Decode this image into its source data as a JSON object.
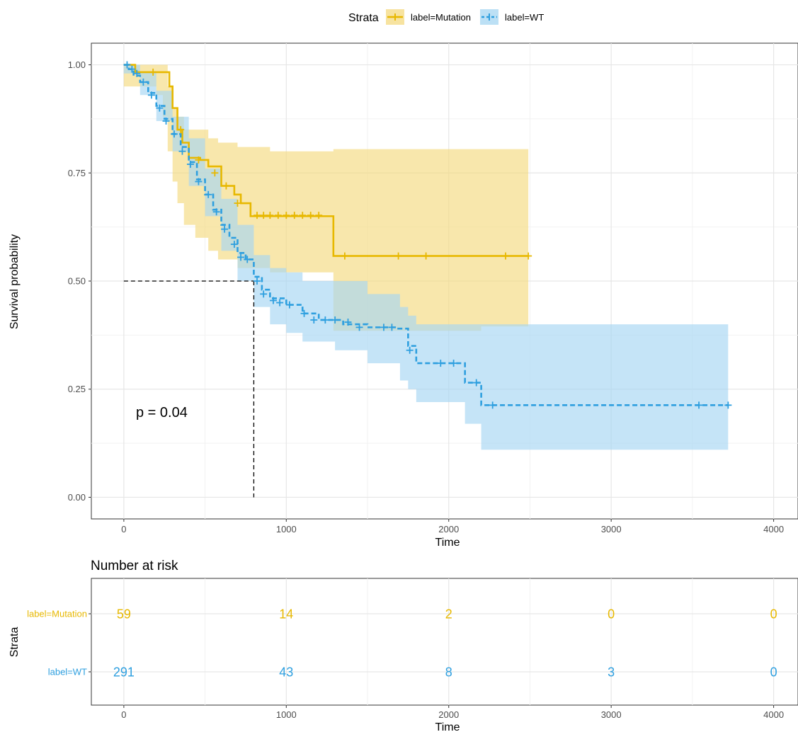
{
  "legend": {
    "title": "Strata",
    "items": [
      "label=Mutation",
      "label=WT"
    ]
  },
  "colors": {
    "mutation": "#E7B800",
    "wt": "#2E9FDF"
  },
  "annotation": {
    "pvalue": "p = 0.04"
  },
  "risk_table": {
    "title": "Number at risk",
    "ylabel": "Strata",
    "xlabel": "Time",
    "times": [
      0,
      1000,
      2000,
      3000,
      4000
    ],
    "rows": [
      {
        "label": "label=Mutation",
        "counts": [
          "59",
          "14",
          "2",
          "0",
          "0"
        ]
      },
      {
        "label": "label=WT",
        "counts": [
          "291",
          "43",
          "8",
          "3",
          "0"
        ]
      }
    ]
  },
  "chart_data": {
    "type": "line",
    "xlabel": "Time",
    "ylabel": "Survival probability",
    "xlim": [
      -200,
      4150
    ],
    "ylim": [
      -0.05,
      1.05
    ],
    "xticks": [
      "0",
      "1000",
      "2000",
      "3000",
      "4000"
    ],
    "yticks": [
      "0.00",
      "0.25",
      "0.50",
      "0.75",
      "1.00"
    ],
    "grid": true,
    "legend_position": "top",
    "median_line": {
      "x": 800,
      "y": 0.5
    },
    "series": [
      {
        "name": "label=Mutation",
        "style": "solid",
        "steps": [
          [
            0,
            1.0
          ],
          [
            70,
            0.983
          ],
          [
            280,
            0.95
          ],
          [
            300,
            0.9
          ],
          [
            330,
            0.85
          ],
          [
            360,
            0.82
          ],
          [
            400,
            0.785
          ],
          [
            470,
            0.78
          ],
          [
            520,
            0.765
          ],
          [
            600,
            0.72
          ],
          [
            680,
            0.7
          ],
          [
            720,
            0.68
          ],
          [
            780,
            0.65
          ],
          [
            1290,
            0.558
          ],
          [
            2490,
            0.558
          ]
        ],
        "censors": [
          [
            180,
            0.983
          ],
          [
            350,
            0.85
          ],
          [
            460,
            0.78
          ],
          [
            560,
            0.75
          ],
          [
            630,
            0.72
          ],
          [
            700,
            0.68
          ],
          [
            820,
            0.652
          ],
          [
            860,
            0.652
          ],
          [
            900,
            0.652
          ],
          [
            950,
            0.652
          ],
          [
            1000,
            0.652
          ],
          [
            1050,
            0.652
          ],
          [
            1100,
            0.652
          ],
          [
            1150,
            0.652
          ],
          [
            1200,
            0.652
          ],
          [
            1360,
            0.558
          ],
          [
            1690,
            0.558
          ],
          [
            1860,
            0.558
          ],
          [
            2350,
            0.558
          ],
          [
            2490,
            0.558
          ]
        ],
        "ci": [
          [
            0,
            0.95,
            1.0
          ],
          [
            200,
            0.93,
            1.0
          ],
          [
            240,
            0.88,
            1.0
          ],
          [
            270,
            0.8,
            0.95
          ],
          [
            300,
            0.73,
            0.9
          ],
          [
            330,
            0.68,
            0.88
          ],
          [
            370,
            0.63,
            0.85
          ],
          [
            440,
            0.6,
            0.85
          ],
          [
            520,
            0.57,
            0.83
          ],
          [
            580,
            0.55,
            0.82
          ],
          [
            700,
            0.53,
            0.81
          ],
          [
            900,
            0.52,
            0.8
          ],
          [
            1290,
            0.385,
            0.805
          ],
          [
            2200,
            0.395,
            0.805
          ],
          [
            2490,
            0.395,
            0.805
          ]
        ]
      },
      {
        "name": "label=WT",
        "style": "dashed",
        "steps": [
          [
            0,
            1.0
          ],
          [
            30,
            0.99
          ],
          [
            60,
            0.975
          ],
          [
            100,
            0.96
          ],
          [
            150,
            0.935
          ],
          [
            200,
            0.905
          ],
          [
            250,
            0.875
          ],
          [
            300,
            0.84
          ],
          [
            350,
            0.81
          ],
          [
            400,
            0.775
          ],
          [
            450,
            0.735
          ],
          [
            500,
            0.7
          ],
          [
            550,
            0.665
          ],
          [
            600,
            0.63
          ],
          [
            650,
            0.6
          ],
          [
            700,
            0.565
          ],
          [
            750,
            0.55
          ],
          [
            800,
            0.51
          ],
          [
            850,
            0.48
          ],
          [
            900,
            0.46
          ],
          [
            1000,
            0.445
          ],
          [
            1100,
            0.425
          ],
          [
            1200,
            0.41
          ],
          [
            1350,
            0.4
          ],
          [
            1500,
            0.393
          ],
          [
            1680,
            0.39
          ],
          [
            1750,
            0.35
          ],
          [
            1800,
            0.31
          ],
          [
            2100,
            0.265
          ],
          [
            2200,
            0.213
          ],
          [
            3720,
            0.213
          ]
        ],
        "censors": [
          [
            20,
            1.0
          ],
          [
            50,
            0.99
          ],
          [
            80,
            0.98
          ],
          [
            120,
            0.96
          ],
          [
            170,
            0.93
          ],
          [
            220,
            0.9
          ],
          [
            260,
            0.87
          ],
          [
            310,
            0.84
          ],
          [
            360,
            0.8
          ],
          [
            410,
            0.77
          ],
          [
            460,
            0.73
          ],
          [
            520,
            0.7
          ],
          [
            570,
            0.66
          ],
          [
            620,
            0.62
          ],
          [
            680,
            0.585
          ],
          [
            720,
            0.555
          ],
          [
            760,
            0.55
          ],
          [
            820,
            0.5
          ],
          [
            860,
            0.47
          ],
          [
            920,
            0.455
          ],
          [
            960,
            0.45
          ],
          [
            1020,
            0.445
          ],
          [
            1110,
            0.425
          ],
          [
            1170,
            0.41
          ],
          [
            1240,
            0.41
          ],
          [
            1300,
            0.41
          ],
          [
            1380,
            0.405
          ],
          [
            1450,
            0.393
          ],
          [
            1600,
            0.393
          ],
          [
            1650,
            0.393
          ],
          [
            1760,
            0.34
          ],
          [
            1950,
            0.31
          ],
          [
            2030,
            0.31
          ],
          [
            2170,
            0.265
          ],
          [
            2270,
            0.213
          ],
          [
            3540,
            0.213
          ],
          [
            3720,
            0.213
          ]
        ],
        "ci": [
          [
            0,
            0.98,
            1.0
          ],
          [
            100,
            0.93,
            0.985
          ],
          [
            200,
            0.87,
            0.94
          ],
          [
            300,
            0.8,
            0.88
          ],
          [
            400,
            0.72,
            0.83
          ],
          [
            500,
            0.65,
            0.76
          ],
          [
            600,
            0.57,
            0.69
          ],
          [
            700,
            0.5,
            0.63
          ],
          [
            800,
            0.44,
            0.56
          ],
          [
            900,
            0.4,
            0.53
          ],
          [
            1000,
            0.38,
            0.52
          ],
          [
            1100,
            0.36,
            0.5
          ],
          [
            1300,
            0.34,
            0.5
          ],
          [
            1500,
            0.31,
            0.47
          ],
          [
            1700,
            0.27,
            0.44
          ],
          [
            1750,
            0.25,
            0.42
          ],
          [
            1800,
            0.22,
            0.4
          ],
          [
            2100,
            0.17,
            0.4
          ],
          [
            2200,
            0.11,
            0.4
          ],
          [
            3720,
            0.11,
            0.4
          ]
        ]
      }
    ]
  }
}
